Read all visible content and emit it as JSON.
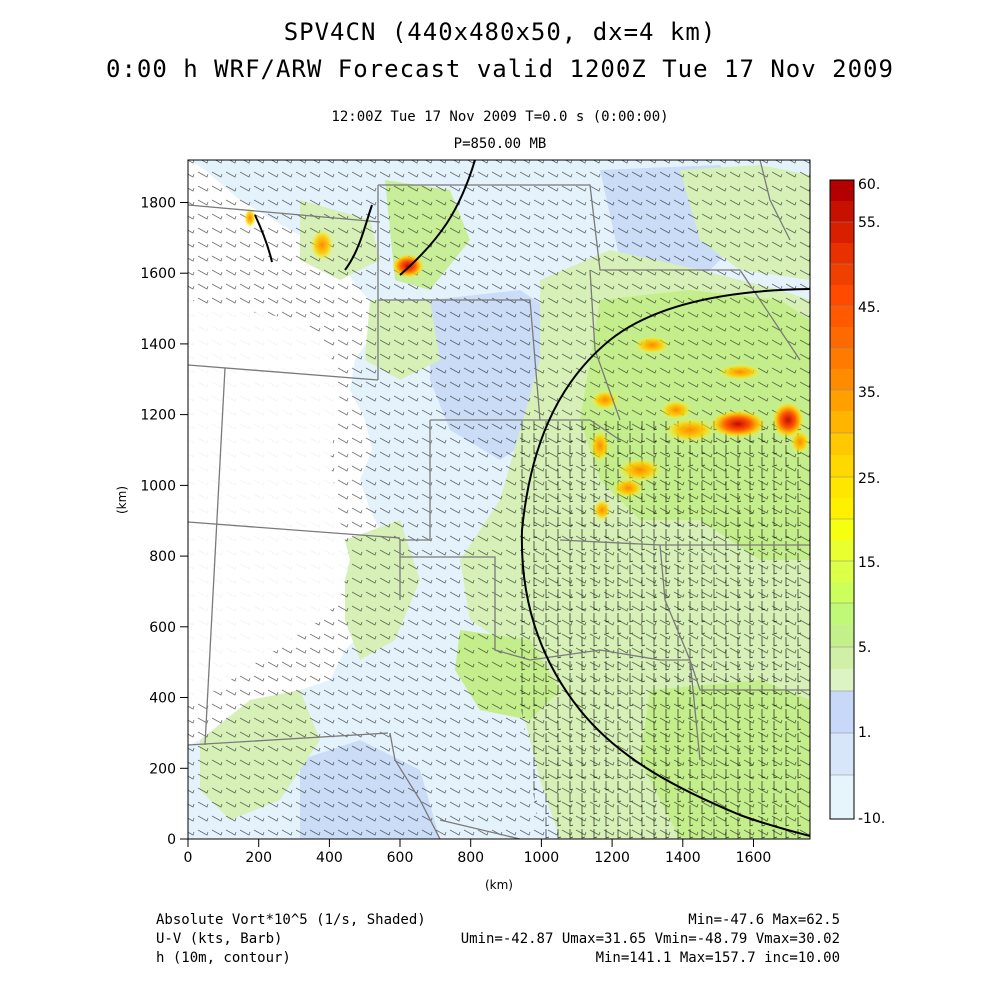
{
  "header": {
    "title_line1": "SPV4CN (440x480x50, dx=4 km)",
    "title_line2": "0:00 h WRF/ARW Forecast valid 1200Z Tue 17 Nov 2009",
    "time_line": "12:00Z Tue 17 Nov 2009     T=0.0 s (0:00:00)",
    "level_line": "P=850.00 MB"
  },
  "axes": {
    "xlabel": "(km)",
    "ylabel": "(km)",
    "x_ticks": [
      "0",
      "200",
      "400",
      "600",
      "800",
      "1000",
      "1200",
      "1400",
      "1600"
    ],
    "y_ticks": [
      "0",
      "200",
      "400",
      "600",
      "800",
      "1000",
      "1200",
      "1400",
      "1600",
      "1800"
    ],
    "x_range_km": [
      0,
      1760
    ],
    "y_range_km": [
      0,
      1920
    ]
  },
  "colorbar": {
    "labels": [
      "60.",
      "55.",
      "45.",
      "35.",
      "25.",
      "15.",
      "5.",
      "1.",
      "-10."
    ],
    "colors": [
      "#b40000",
      "#d21e00",
      "#e63200",
      "#ff3c00",
      "#ff6e00",
      "#ff9600",
      "#ffb400",
      "#ffd200",
      "#ffee10",
      "#eeff40",
      "#ccff66",
      "#b8f09a",
      "#d8f0c8",
      "#c8d8f8",
      "#d8e8fa",
      "#e6f4fc"
    ]
  },
  "footer": {
    "field1": "Absolute Vort*10^5 (1/s, Shaded)",
    "field1_stats": "Min=-47.6 Max=62.5",
    "field2": "U-V (kts, Barb)",
    "field2_stats": "Umin=-42.87 Umax=31.65 Vmin=-48.79 Vmax=30.02",
    "field3": "h (10m, contour)",
    "field3_stats": "Min=141.1 Max=157.7 inc=10.00"
  }
}
